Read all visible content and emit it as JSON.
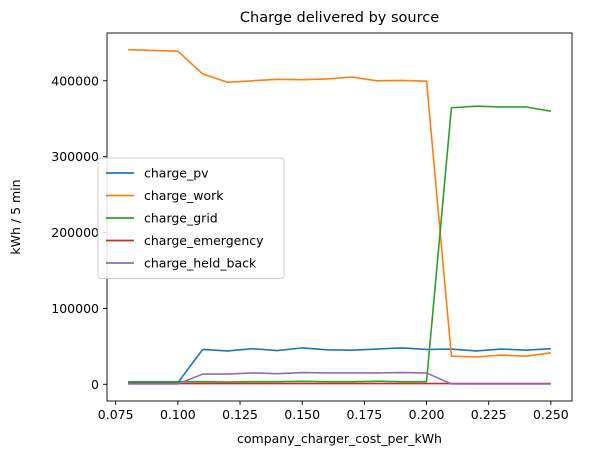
{
  "chart_data": {
    "type": "line",
    "title": "Charge delivered by source",
    "xlabel": "company_charger_cost_per_kWh",
    "ylabel": "kWh / 5 min",
    "xlim": [
      0.0715,
      0.2585
    ],
    "ylim": [
      -22000,
      463000
    ],
    "xticks": [
      0.075,
      0.1,
      0.125,
      0.15,
      0.175,
      0.2,
      0.225,
      0.25
    ],
    "xtick_labels": [
      "0.075",
      "0.100",
      "0.125",
      "0.150",
      "0.175",
      "0.200",
      "0.225",
      "0.250"
    ],
    "yticks": [
      0,
      100000,
      200000,
      300000,
      400000
    ],
    "ytick_labels": [
      "0",
      "100000",
      "200000",
      "300000",
      "400000"
    ],
    "grid": false,
    "legend_position": "center-left",
    "x": [
      0.08,
      0.09,
      0.1,
      0.11,
      0.12,
      0.13,
      0.14,
      0.15,
      0.16,
      0.17,
      0.18,
      0.19,
      0.2,
      0.21,
      0.22,
      0.23,
      0.24,
      0.25
    ],
    "series": [
      {
        "name": "charge_pv",
        "color": "#1f77b4",
        "values": [
          2000,
          2000,
          2000,
          46000,
          44000,
          47000,
          44500,
          48000,
          45500,
          45000,
          46500,
          48000,
          46000,
          46500,
          44000,
          46500,
          45000,
          47000
        ]
      },
      {
        "name": "charge_work",
        "color": "#ff7f0e",
        "values": [
          441000,
          440000,
          439000,
          409000,
          398000,
          400000,
          402000,
          401500,
          402500,
          405000,
          400000,
          400500,
          399500,
          37000,
          36000,
          38500,
          37000,
          41500
        ]
      },
      {
        "name": "charge_grid",
        "color": "#2ca02c",
        "values": [
          3500,
          3500,
          3500,
          3500,
          3000,
          3500,
          3500,
          4000,
          3500,
          3500,
          4000,
          3500,
          3500,
          364500,
          366500,
          365500,
          365500,
          360000
        ]
      },
      {
        "name": "charge_emergency",
        "color": "#d62728",
        "values": [
          1000,
          1000,
          1000,
          1000,
          1000,
          1000,
          1000,
          1000,
          1000,
          1000,
          1000,
          1000,
          1000,
          1000,
          1000,
          1000,
          1000,
          1000
        ]
      },
      {
        "name": "charge_held_back",
        "color": "#9467bd",
        "values": [
          500,
          500,
          500,
          13500,
          13500,
          15000,
          14000,
          15500,
          15000,
          15000,
          15000,
          15500,
          15000,
          500,
          500,
          500,
          500,
          500
        ]
      }
    ]
  }
}
